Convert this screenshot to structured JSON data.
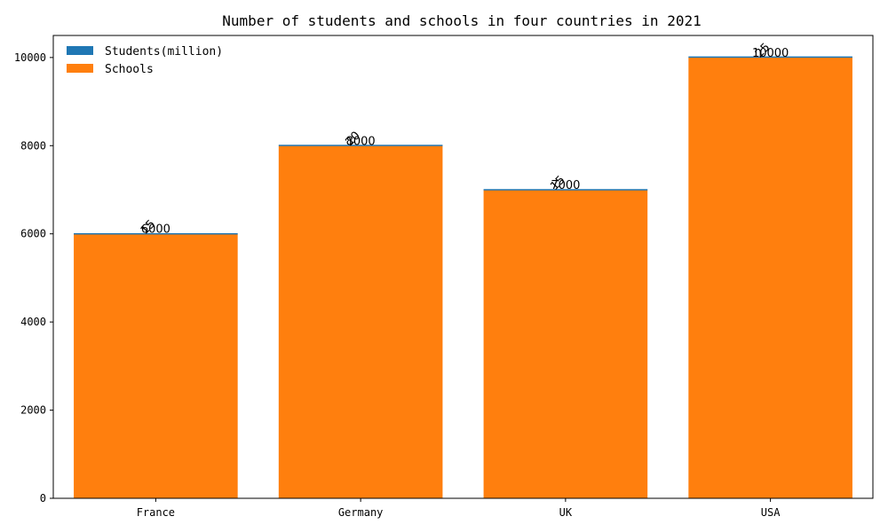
{
  "chart_data": {
    "type": "bar",
    "stacked": true,
    "title": "Number of students and schools in four countries in 2021",
    "xlabel": "",
    "ylabel": "",
    "categories": [
      "France",
      "Germany",
      "UK",
      "USA"
    ],
    "series": [
      {
        "name": "Students(million)",
        "values": [
          15,
          20,
          15,
          25
        ],
        "color": "#1f77b4"
      },
      {
        "name": "Schools",
        "values": [
          6000,
          8000,
          7000,
          10000
        ],
        "color": "#ff7f0e"
      }
    ],
    "ylim": [
      0,
      10500
    ],
    "yticks": [
      0,
      2000,
      4000,
      6000,
      8000,
      10000
    ],
    "legend_position": "top-left",
    "grid": false
  }
}
